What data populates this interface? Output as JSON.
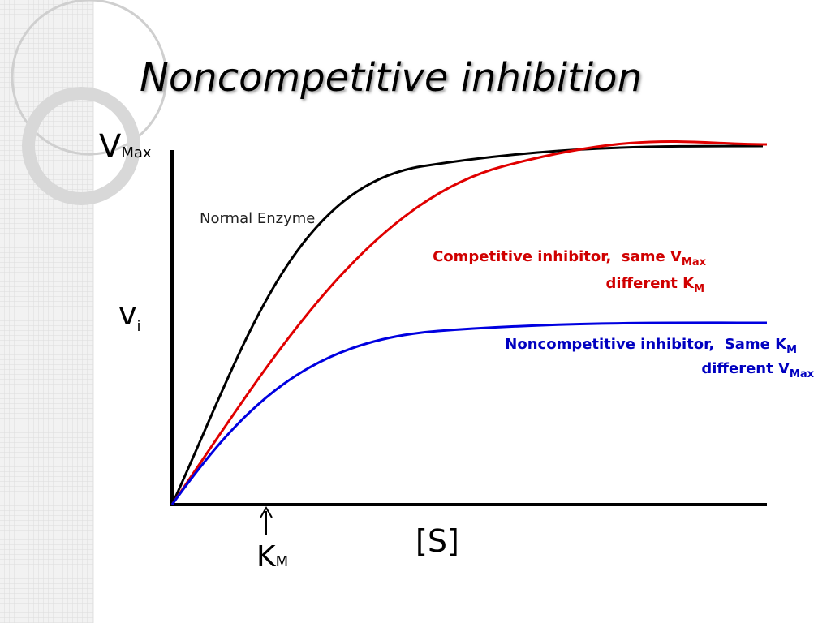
{
  "title": "Noncompetitive inhibition",
  "axes": {
    "y_top": {
      "main": "V",
      "sub": "Max"
    },
    "y_mid": {
      "main": "v",
      "sub": "i"
    },
    "x_marker": {
      "main": "K",
      "sub": "M"
    },
    "x_label": "[S]"
  },
  "curves": [
    {
      "lines": [
        {
          "main": "Normal Enzyme"
        }
      ]
    },
    {
      "lines": [
        {
          "main": "Competitive inhibitor,  same V",
          "sub": "Max"
        },
        {
          "main": "different K",
          "sub": "M"
        }
      ]
    },
    {
      "lines": [
        {
          "main": "Noncompetitive inhibitor,  Same K",
          "sub": "M"
        },
        {
          "main": "different V",
          "sub": "Max"
        }
      ]
    }
  ]
}
